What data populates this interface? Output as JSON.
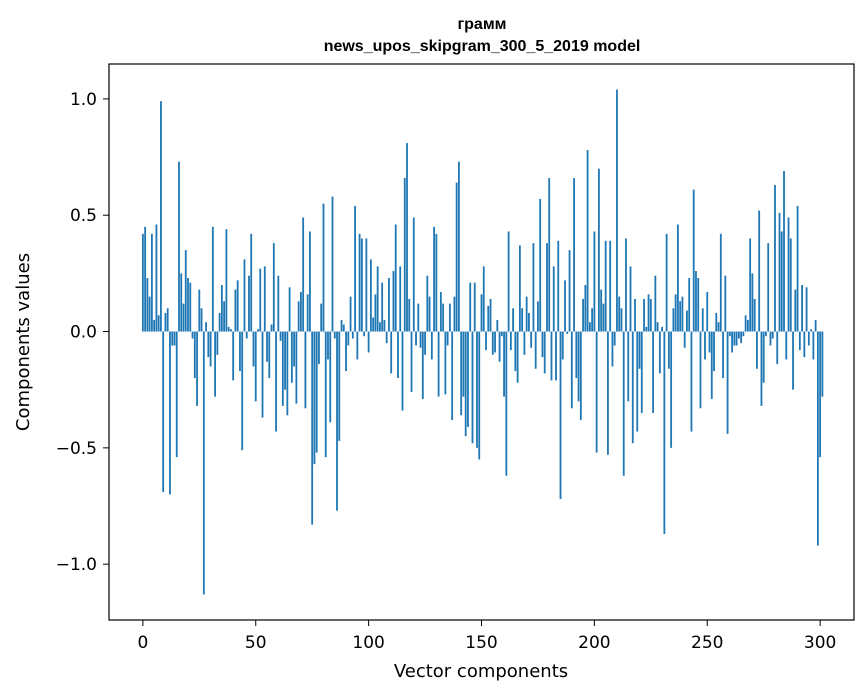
{
  "chart_data": {
    "type": "bar",
    "title_lines": [
      "грамм",
      "news_upos_skipgram_300_5_2019 model"
    ],
    "xlabel": "Vector components",
    "ylabel": "Components values",
    "xlim": [
      -15,
      315
    ],
    "ylim": [
      -1.24,
      1.15
    ],
    "xticks": [
      0,
      50,
      100,
      150,
      200,
      250,
      300
    ],
    "xtick_labels": [
      "0",
      "50",
      "100",
      "150",
      "200",
      "250",
      "300"
    ],
    "yticks": [
      -1.0,
      -0.5,
      0.0,
      0.5,
      1.0
    ],
    "ytick_labels": [
      "−1.0",
      "−0.5",
      "0.0",
      "0.5",
      "1.0"
    ],
    "grid": false,
    "bar_color": "#1f77b4",
    "values": [
      0.42,
      0.45,
      0.23,
      0.15,
      0.42,
      0.05,
      0.46,
      0.07,
      0.99,
      -0.69,
      0.08,
      0.1,
      -0.7,
      -0.06,
      -0.06,
      -0.54,
      0.73,
      0.25,
      0.12,
      0.35,
      0.23,
      0.21,
      -0.03,
      -0.2,
      -0.32,
      0.18,
      0.1,
      -1.13,
      0.04,
      -0.11,
      -0.15,
      0.45,
      -0.28,
      -0.1,
      0.08,
      0.2,
      0.13,
      0.44,
      0.02,
      0.01,
      -0.21,
      0.18,
      0.22,
      -0.17,
      -0.51,
      0.31,
      -0.03,
      0.24,
      0.42,
      -0.15,
      -0.3,
      0.01,
      0.27,
      -0.37,
      0.28,
      -0.13,
      -0.2,
      0.03,
      0.38,
      -0.43,
      0.24,
      -0.04,
      -0.32,
      -0.25,
      -0.36,
      0.19,
      -0.22,
      -0.15,
      -0.31,
      0.13,
      0.17,
      0.49,
      -0.33,
      0.16,
      0.43,
      -0.83,
      -0.57,
      -0.52,
      -0.14,
      0.12,
      0.55,
      -0.54,
      -0.12,
      -0.39,
      0.58,
      -0.03,
      -0.77,
      -0.47,
      0.05,
      0.03,
      -0.17,
      -0.06,
      0.15,
      -0.03,
      0.54,
      -0.12,
      0.42,
      0.4,
      -0.02,
      0.4,
      -0.09,
      0.31,
      0.06,
      0.16,
      0.28,
      0.04,
      0.21,
      0.05,
      -0.05,
      0.23,
      -0.18,
      0.26,
      0.46,
      -0.2,
      0.28,
      -0.34,
      0.66,
      0.81,
      0.14,
      -0.26,
      0.49,
      -0.06,
      0.12,
      -0.07,
      -0.29,
      -0.1,
      0.24,
      0.15,
      -0.12,
      0.45,
      0.42,
      -0.28,
      0.17,
      0.12,
      -0.27,
      -0.06,
      0.12,
      -0.38,
      0.15,
      0.64,
      0.73,
      -0.36,
      -0.28,
      -0.45,
      -0.41,
      0.21,
      -0.48,
      0.21,
      -0.5,
      -0.55,
      0.16,
      0.28,
      -0.08,
      0.11,
      0.14,
      -0.1,
      -0.09,
      0.05,
      -0.13,
      -0.02,
      -0.28,
      -0.62,
      0.43,
      -0.08,
      0.1,
      -0.17,
      -0.22,
      0.37,
      0.1,
      -0.1,
      0.15,
      0.08,
      -0.07,
      0.38,
      -0.16,
      0.13,
      0.57,
      -0.11,
      -0.18,
      0.38,
      0.66,
      -0.21,
      0.28,
      -0.21,
      0.39,
      -0.72,
      -0.12,
      0.22,
      -0.01,
      0.35,
      -0.33,
      0.66,
      -0.2,
      -0.3,
      -0.38,
      0.14,
      0.2,
      0.78,
      0.04,
      0.1,
      0.43,
      -0.52,
      0.7,
      0.18,
      0.12,
      0.39,
      -0.53,
      0.39,
      -0.15,
      -0.06,
      1.04,
      0.15,
      0.1,
      -0.62,
      0.4,
      -0.3,
      0.28,
      -0.48,
      0.14,
      -0.43,
      -0.16,
      -0.35,
      0.14,
      0.02,
      0.16,
      0.14,
      -0.35,
      0.24,
      0.04,
      -0.18,
      0.02,
      -0.87,
      0.42,
      -0.16,
      -0.5,
      0.1,
      0.16,
      0.46,
      0.13,
      0.15,
      -0.07,
      0.09,
      0.23,
      -0.43,
      0.61,
      0.26,
      0.23,
      -0.33,
      0.1,
      -0.12,
      0.17,
      -0.09,
      -0.29,
      -0.17,
      0.08,
      0.04,
      0.42,
      -0.2,
      0.24,
      -0.44,
      -0.02,
      -0.09,
      -0.06,
      -0.06,
      -0.03,
      -0.05,
      -0.02,
      0.07,
      0.05,
      0.4,
      0.25,
      0.14,
      -0.16,
      0.52,
      -0.32,
      -0.22,
      -0.02,
      0.38,
      -0.06,
      -0.03,
      0.63,
      -0.14,
      0.51,
      0.43,
      0.69,
      -0.12,
      0.49,
      0.4,
      -0.25,
      0.18,
      0.54,
      -0.08,
      0.2,
      -0.11,
      0.19,
      -0.06,
      0.01,
      -0.12,
      0.05,
      -0.92,
      -0.54,
      -0.28
    ]
  }
}
